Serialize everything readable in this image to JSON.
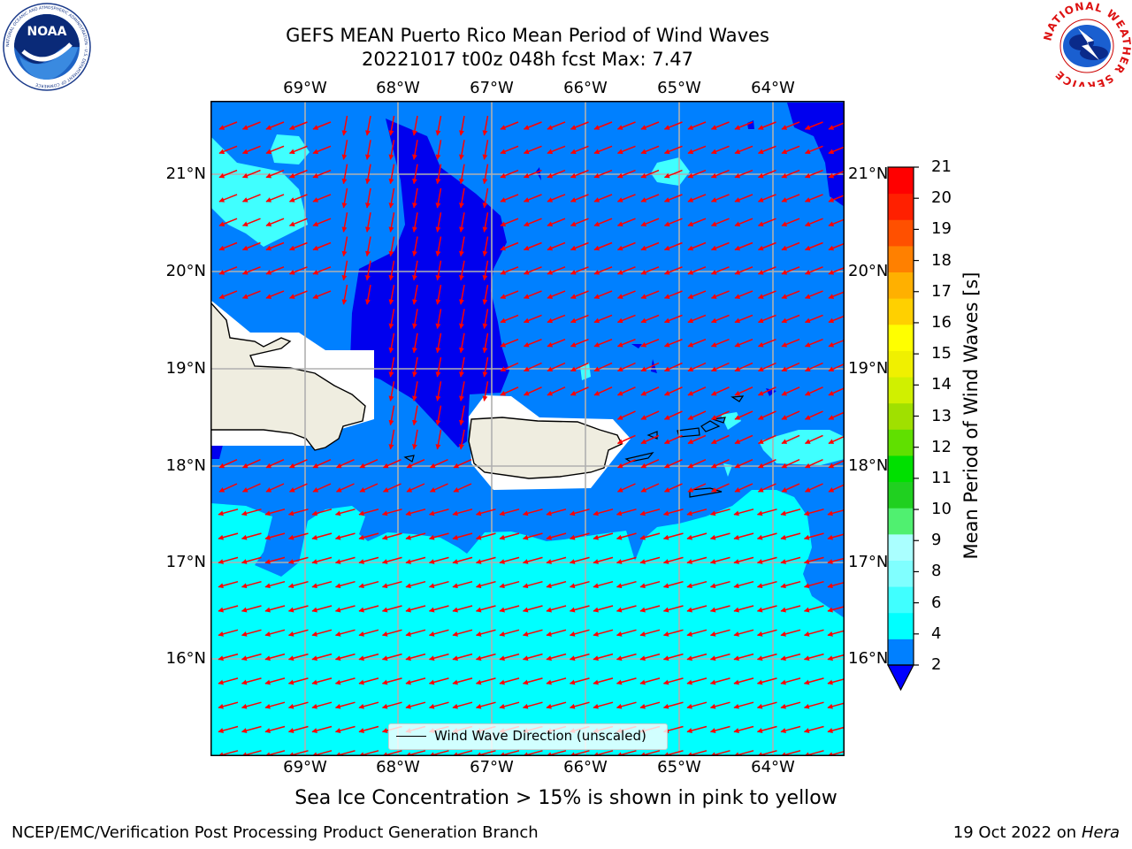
{
  "header": {
    "title_line1": "GEFS MEAN Puerto Rico Mean Period of Wind Waves",
    "title_line2": "20221017 t00z 048h fcst   Max: 7.47"
  },
  "logos": {
    "left": {
      "name": "noara-logo",
      "text": "NOAA",
      "ring_text": "NATIONAL OCEANIC AND ATMOSPHERIC ADMINISTRATION · U.S. DEPARTMENT OF COMMERCE"
    },
    "right": {
      "name": "nws-logo",
      "ring_text": "NATIONAL WEATHER SERVICE"
    }
  },
  "map": {
    "lon_labels": [
      "69°W",
      "68°W",
      "67°W",
      "66°W",
      "65°W",
      "64°W"
    ],
    "lat_labels": [
      "21°N",
      "20°N",
      "19°N",
      "18°N",
      "17°N",
      "16°N"
    ],
    "legend_label": "Wind Wave Direction (unscaled)",
    "colors": {
      "period_2_4": "#0080ff",
      "period_lt_2": "#0000ee",
      "period_4_6": "#00ffff",
      "period_6_8": "#40ffff",
      "land": "#efede0",
      "arrows": "#ff0000",
      "grid": "#b0b0b0"
    }
  },
  "colorbar": {
    "label": "Mean Period of Wind Waves [s]",
    "ticks": [
      "21",
      "20",
      "19",
      "18",
      "17",
      "16",
      "15",
      "14",
      "13",
      "12",
      "11",
      "10",
      "9",
      "8",
      "6",
      "4",
      "2"
    ],
    "colors_bottom_to_top": [
      "#0080ff",
      "#00ffff",
      "#40ffff",
      "#80ffff",
      "#aaffff",
      "#50f070",
      "#20d020",
      "#00e000",
      "#60e000",
      "#a0e000",
      "#d0f000",
      "#f0f000",
      "#ffff00",
      "#ffd000",
      "#ffb000",
      "#ff8000",
      "#ff5000",
      "#ff2000",
      "#ff0000"
    ],
    "extend_color": "#0000ff"
  },
  "footer": {
    "note": "Sea Ice Concentration > 15% is shown in pink to yellow",
    "left": "NCEP/EMC/Verification Post Processing Product Generation Branch",
    "right_prefix": "19 Oct 2022 on ",
    "right_host": "Hera"
  }
}
